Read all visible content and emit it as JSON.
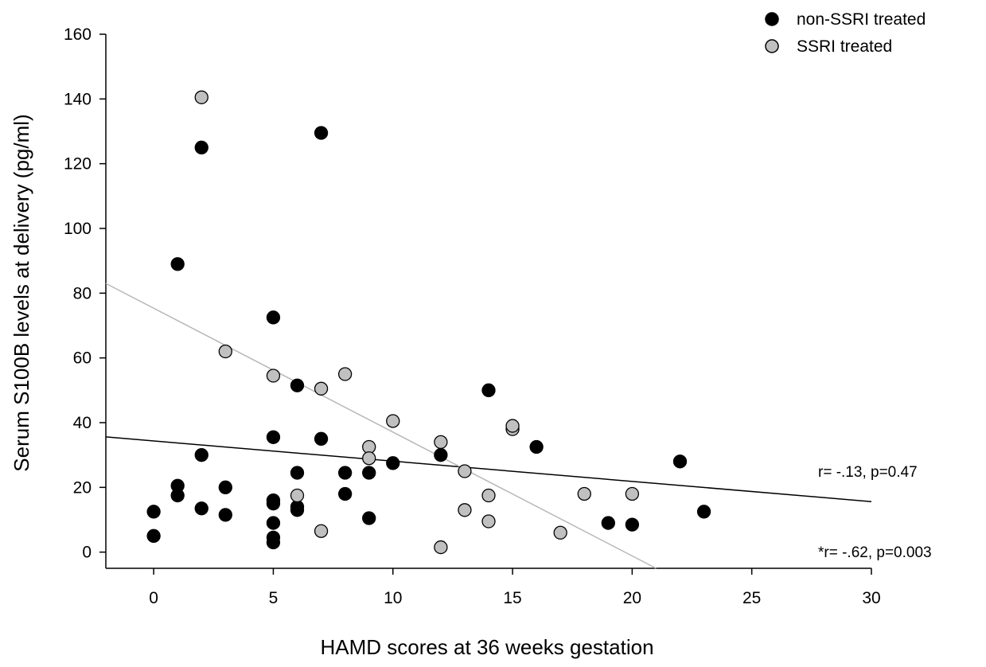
{
  "chart_data": {
    "type": "scatter",
    "xlabel": "HAMD scores at 36 weeks gestation",
    "ylabel": "Serum S100B levels at delivery (pg/ml)",
    "xlim": [
      -2,
      30
    ],
    "ylim": [
      -5,
      160
    ],
    "xticks": [
      0,
      5,
      10,
      15,
      20,
      25,
      30
    ],
    "yticks": [
      0,
      20,
      40,
      60,
      80,
      100,
      120,
      140,
      160
    ],
    "xtick_labels": [
      "0",
      "5",
      "10",
      "15",
      "20",
      "25",
      "30"
    ],
    "ytick_labels": [
      "0",
      "20",
      "40",
      "60",
      "80",
      "100",
      "120",
      "140",
      "160"
    ],
    "grid": false,
    "legend_position": "top-right",
    "series": [
      {
        "name": "non-SSRI treated",
        "color": "#000000",
        "points": [
          [
            0,
            12.5
          ],
          [
            0,
            5
          ],
          [
            1,
            89
          ],
          [
            1,
            20.5
          ],
          [
            1,
            17.5
          ],
          [
            2,
            125
          ],
          [
            2,
            30
          ],
          [
            2,
            13.5
          ],
          [
            3,
            20
          ],
          [
            3,
            11.5
          ],
          [
            5,
            72.5
          ],
          [
            5,
            35.5
          ],
          [
            5,
            16
          ],
          [
            5,
            15
          ],
          [
            5,
            9
          ],
          [
            5,
            4.5
          ],
          [
            5,
            3
          ],
          [
            6,
            51.5
          ],
          [
            6,
            24.5
          ],
          [
            6,
            14
          ],
          [
            6,
            13
          ],
          [
            7,
            129.5
          ],
          [
            7,
            35
          ],
          [
            8,
            24.5
          ],
          [
            8,
            18
          ],
          [
            9,
            24.5
          ],
          [
            9,
            10.5
          ],
          [
            10,
            27.5
          ],
          [
            12,
            30
          ],
          [
            14,
            50
          ],
          [
            16,
            32.5
          ],
          [
            19,
            9
          ],
          [
            20,
            8.5
          ],
          [
            22,
            28
          ],
          [
            23,
            12.5
          ]
        ],
        "trendline": {
          "x": [
            -2,
            30
          ],
          "y": [
            35.6,
            15.6
          ]
        },
        "annotation": "r= -.13, p=0.47"
      },
      {
        "name": "SSRI treated",
        "color": "#c0c0c0",
        "points": [
          [
            2,
            140.5
          ],
          [
            3,
            62
          ],
          [
            5,
            54.5
          ],
          [
            6,
            17.5
          ],
          [
            7,
            50.5
          ],
          [
            7,
            6.5
          ],
          [
            8,
            55
          ],
          [
            9,
            32.5
          ],
          [
            9,
            29
          ],
          [
            10,
            40.5
          ],
          [
            12,
            34
          ],
          [
            12,
            1.5
          ],
          [
            13,
            25
          ],
          [
            13,
            13
          ],
          [
            14,
            17.5
          ],
          [
            14,
            9.5
          ],
          [
            15,
            38
          ],
          [
            15,
            39
          ],
          [
            17,
            6
          ],
          [
            18,
            18
          ],
          [
            20,
            18
          ]
        ],
        "trendline": {
          "x": [
            -2,
            21
          ],
          "y": [
            83,
            -5
          ]
        },
        "annotation": "*r= -.62, p=0.003"
      }
    ]
  }
}
